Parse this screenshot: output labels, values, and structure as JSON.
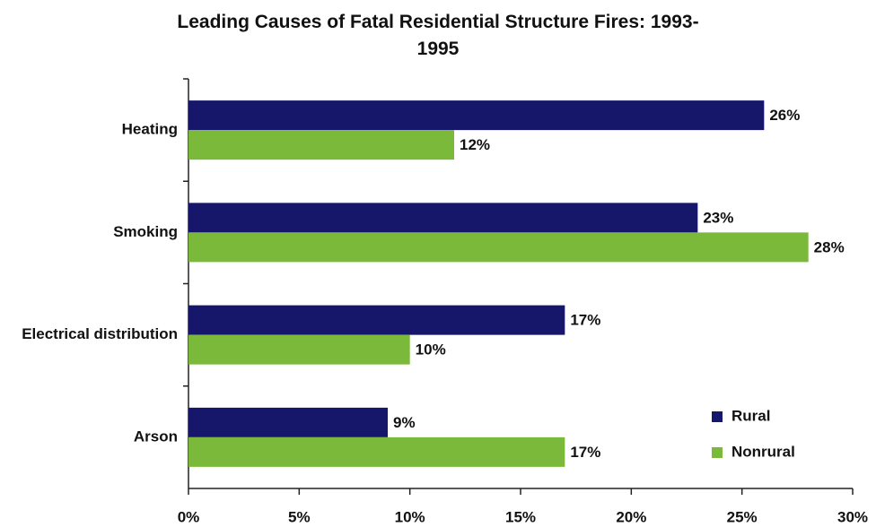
{
  "chart_data": {
    "type": "hbar",
    "title": "Leading Causes of Fatal Residential Structure Fires: 1993-1995",
    "categories": [
      "Heating",
      "Smoking",
      "Electrical distribution",
      "Arson"
    ],
    "series": [
      {
        "name": "Rural",
        "color": "#16166b",
        "values": [
          26,
          23,
          17,
          9
        ],
        "value_labels": [
          "26%",
          "23%",
          "17%",
          "9%"
        ]
      },
      {
        "name": "Nonrural",
        "color": "#7ab93a",
        "values": [
          12,
          28,
          10,
          17
        ],
        "value_labels": [
          "12%",
          "28%",
          "10%",
          "17%"
        ]
      }
    ],
    "xlim": [
      0,
      30
    ],
    "xticks": [
      {
        "value": 0,
        "label": "0%"
      },
      {
        "value": 5,
        "label": "5%"
      },
      {
        "value": 10,
        "label": "10%"
      },
      {
        "value": 15,
        "label": "15%"
      },
      {
        "value": 20,
        "label": "20%"
      },
      {
        "value": 25,
        "label": "25%"
      },
      {
        "value": 30,
        "label": "30%"
      }
    ],
    "legend": "lower right"
  }
}
